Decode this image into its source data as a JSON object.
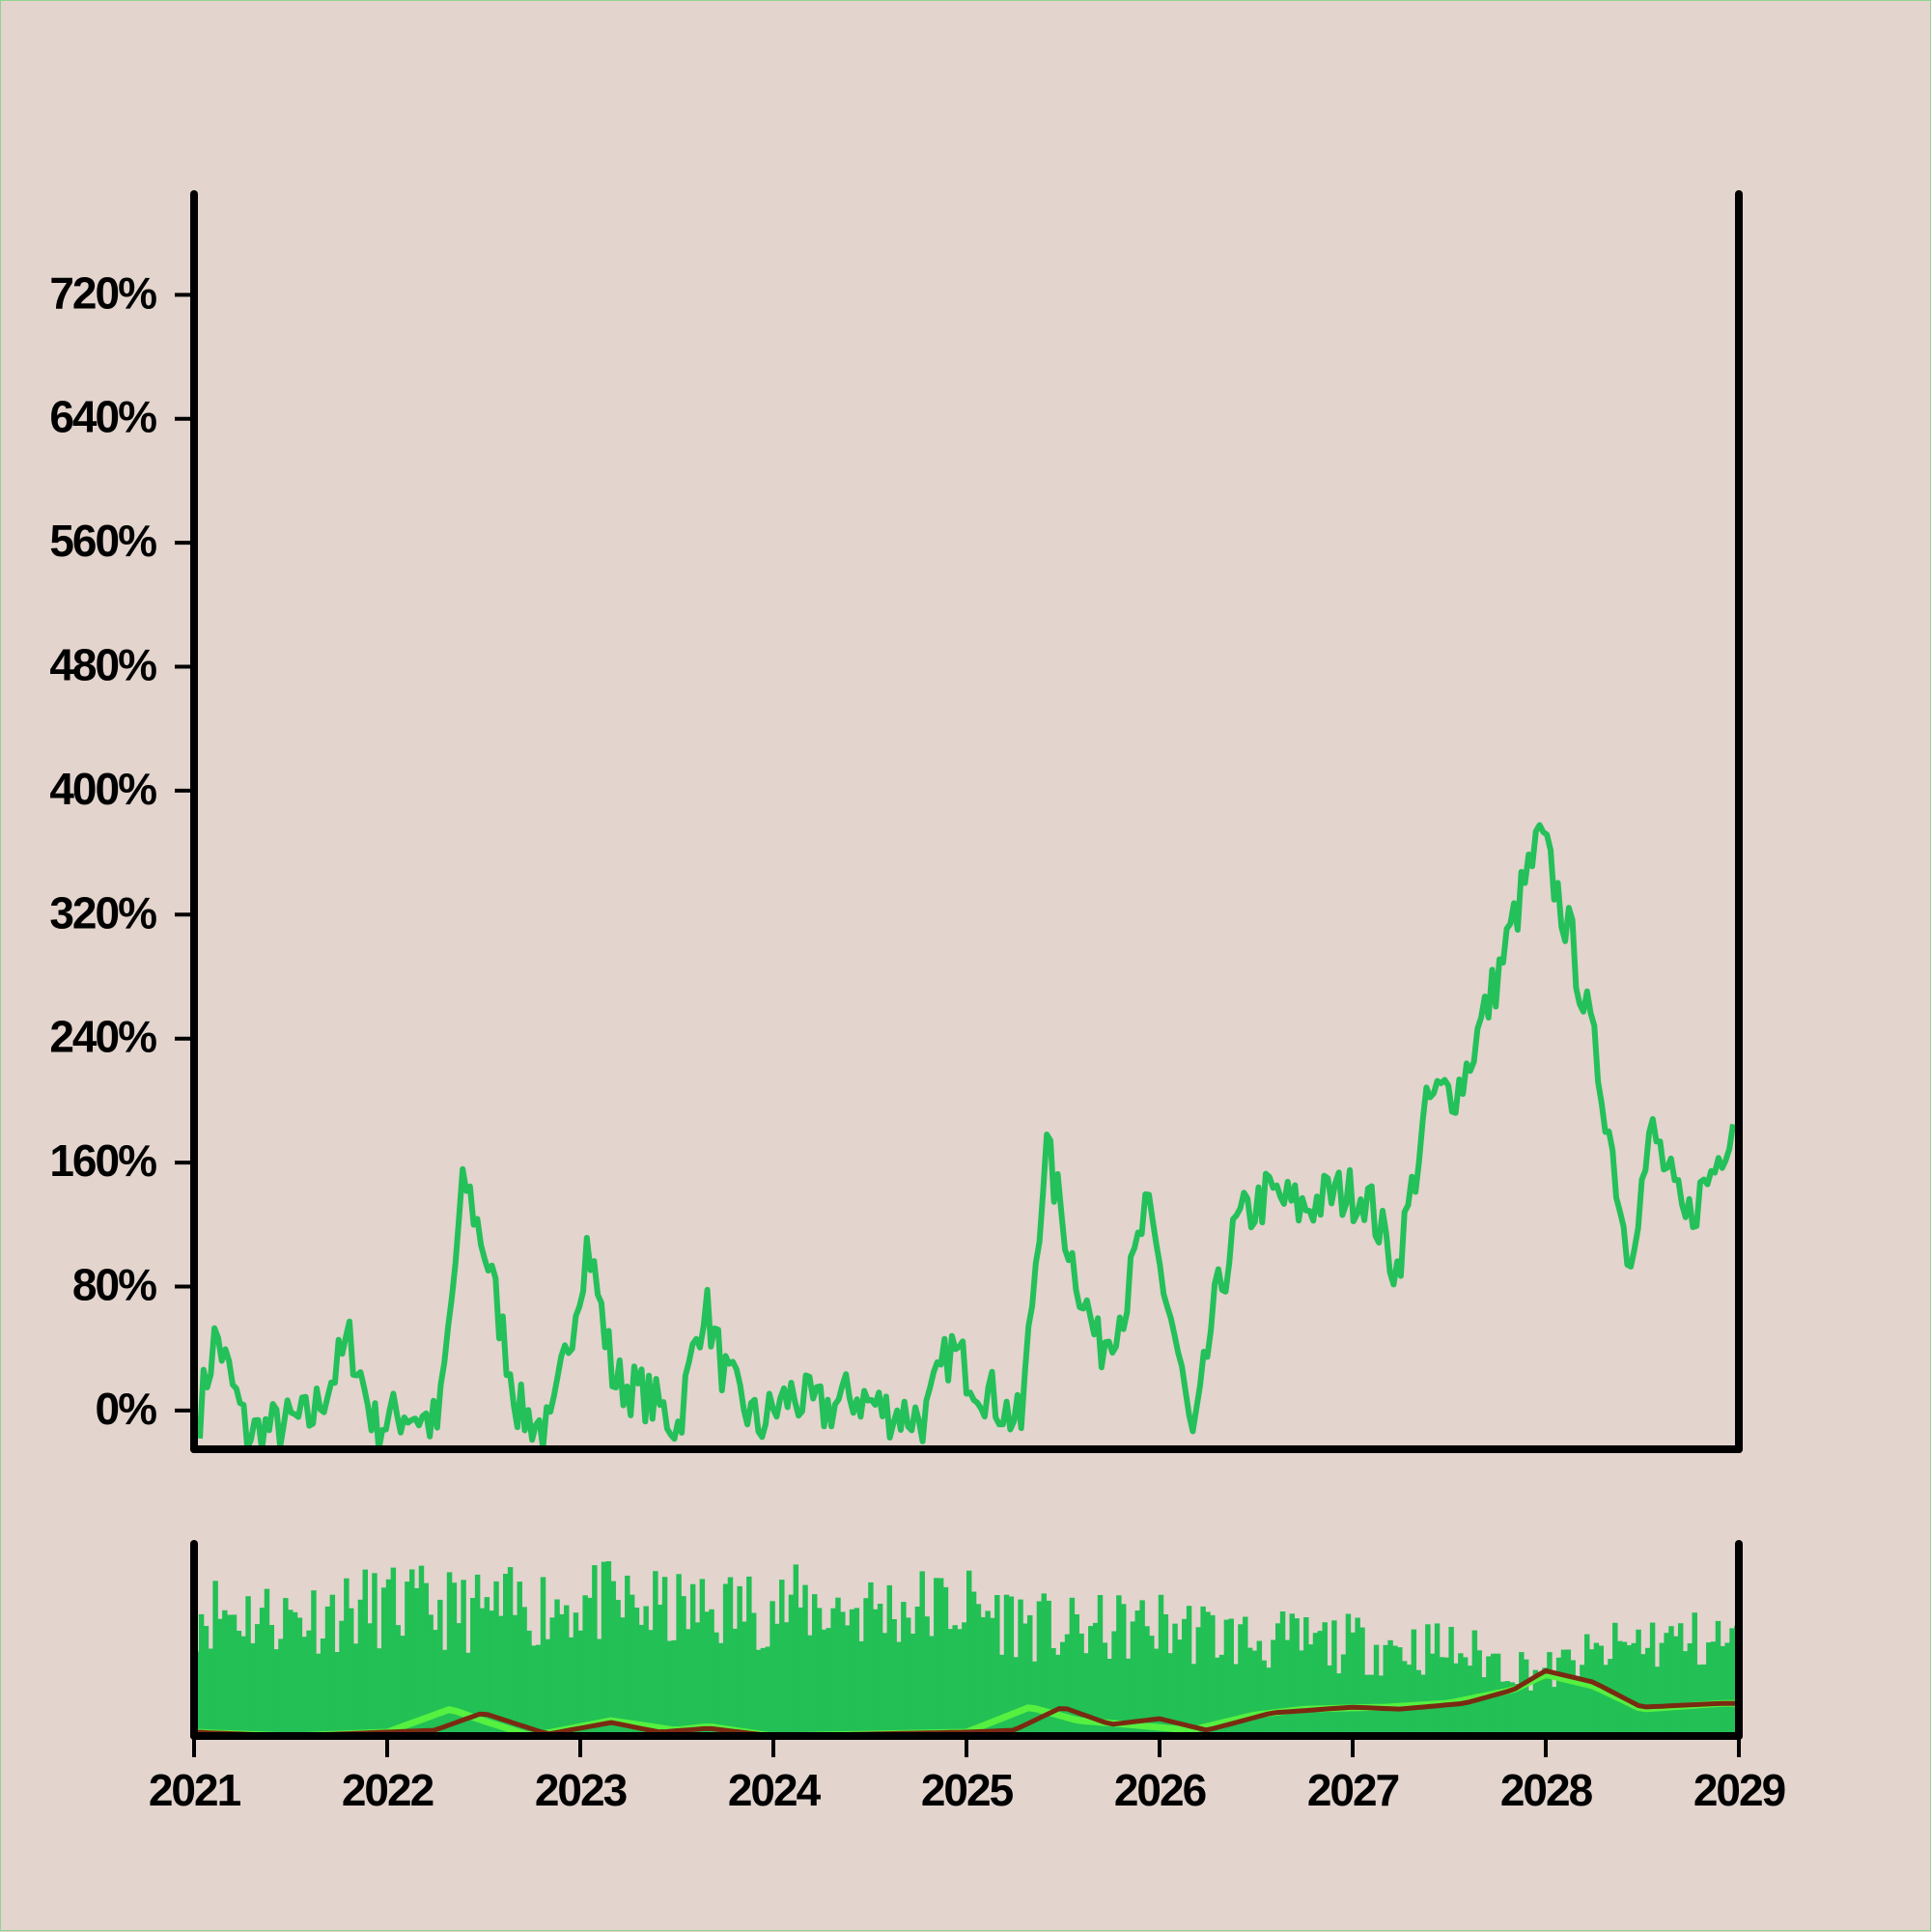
{
  "colors": {
    "background": "#e3d4cd",
    "price_line": "#24c05a",
    "volume_bars": "#22c055",
    "volume_ma_fast": "#55f040",
    "volume_ma_slow": "#7a2a12",
    "axis": "#000000"
  },
  "chart_data": [
    {
      "type": "line",
      "title": "",
      "xlabel": "",
      "ylabel": "",
      "ylim": [
        -25,
        785
      ],
      "xlim": [
        "2021-01-01",
        "2029-01-01"
      ],
      "y_ticks": [
        0,
        80,
        160,
        240,
        320,
        400,
        480,
        560,
        640,
        720
      ],
      "y_tick_labels": [
        "0%",
        "80%",
        "160%",
        "240%",
        "320%",
        "400%",
        "480%",
        "560%",
        "640%",
        "720%"
      ],
      "grid": false,
      "series": [
        {
          "name": "",
          "x": [
            "2021-01-01",
            "2021-02-01",
            "2021-04-01",
            "2021-06-01",
            "2021-08-01",
            "2021-10-15",
            "2021-12-01",
            "2022-02-01",
            "2022-04-01",
            "2022-05-20",
            "2022-07-01",
            "2022-09-01",
            "2022-11-01",
            "2023-01-10",
            "2023-03-01",
            "2023-05-01",
            "2023-07-01",
            "2023-08-20",
            "2023-10-01",
            "2023-12-01",
            "2024-02-01",
            "2024-04-01",
            "2024-06-01",
            "2024-08-01",
            "2024-10-15",
            "2024-12-01",
            "2025-02-01",
            "2025-04-15",
            "2025-06-01",
            "2025-07-20",
            "2025-09-10",
            "2025-11-01",
            "2025-12-10",
            "2026-02-01",
            "2026-03-10",
            "2026-04-15",
            "2026-06-01",
            "2026-08-01",
            "2026-10-01",
            "2026-12-01",
            "2027-02-01",
            "2027-04-01",
            "2027-06-01",
            "2027-08-01",
            "2027-10-10",
            "2027-12-01",
            "2028-01-01",
            "2028-03-01",
            "2028-05-01",
            "2028-06-15",
            "2028-08-01",
            "2028-10-01",
            "2028-12-01",
            "2028-12-31"
          ],
          "y": [
            0,
            50,
            -15,
            -10,
            -5,
            45,
            -10,
            0,
            -10,
            150,
            100,
            0,
            -15,
            110,
            20,
            10,
            -10,
            70,
            20,
            -10,
            10,
            0,
            10,
            0,
            -5,
            40,
            15,
            -10,
            170,
            100,
            40,
            70,
            130,
            50,
            -25,
            60,
            120,
            140,
            130,
            140,
            140,
            90,
            200,
            210,
            280,
            340,
            370,
            300,
            200,
            100,
            180,
            120,
            160,
            190
          ]
        }
      ]
    },
    {
      "type": "bar",
      "title": "",
      "xlabel": "",
      "ylabel": "",
      "x_tick_labels": [
        "2021",
        "2022",
        "2023",
        "2024",
        "2025",
        "2026",
        "2027",
        "2028",
        "2029"
      ],
      "grid": false,
      "series": [
        {
          "name": "",
          "type": "bar",
          "x": [
            "2021-01",
            "2021-07",
            "2022-01",
            "2022-07",
            "2023-01",
            "2023-07",
            "2024-01",
            "2024-07",
            "2025-01",
            "2025-07",
            "2026-01",
            "2026-07",
            "2027-01",
            "2027-07",
            "2028-01",
            "2028-07",
            "2028-12"
          ],
          "values": [
            80,
            75,
            82,
            78,
            85,
            78,
            82,
            80,
            82,
            65,
            70,
            60,
            58,
            55,
            40,
            60,
            60
          ]
        },
        {
          "name": "",
          "type": "line",
          "x": [
            "2021-01",
            "2021-07",
            "2022-01",
            "2022-05",
            "2022-07",
            "2022-10",
            "2023-03",
            "2023-07",
            "2023-09",
            "2024-01",
            "2024-07",
            "2025-01",
            "2025-05",
            "2025-08",
            "2025-11",
            "2026-03",
            "2026-07",
            "2026-10",
            "2027-03",
            "2027-07",
            "2027-11",
            "2028-01",
            "2028-04",
            "2028-07",
            "2028-12"
          ],
          "values": [
            2,
            0,
            2,
            14,
            8,
            0,
            8,
            3,
            5,
            0,
            1,
            2,
            15,
            8,
            6,
            3,
            11,
            14,
            15,
            17,
            24,
            32,
            26,
            14,
            17
          ]
        },
        {
          "name": "",
          "type": "line",
          "x": [
            "2021-01",
            "2021-07",
            "2022-01",
            "2022-04",
            "2022-07",
            "2022-11",
            "2023-03",
            "2023-06",
            "2023-09",
            "2024-01",
            "2024-07",
            "2025-01",
            "2025-04",
            "2025-07",
            "2025-10",
            "2026-01",
            "2026-04",
            "2026-08",
            "2027-01",
            "2027-04",
            "2027-08",
            "2027-11",
            "2028-01",
            "2028-04",
            "2028-07",
            "2028-12"
          ],
          "values": [
            2,
            0,
            2,
            3,
            12,
            1,
            7,
            2,
            4,
            0,
            1,
            2,
            3,
            15,
            6,
            9,
            3,
            12,
            15,
            14,
            17,
            24,
            34,
            28,
            15,
            17
          ]
        }
      ]
    }
  ]
}
